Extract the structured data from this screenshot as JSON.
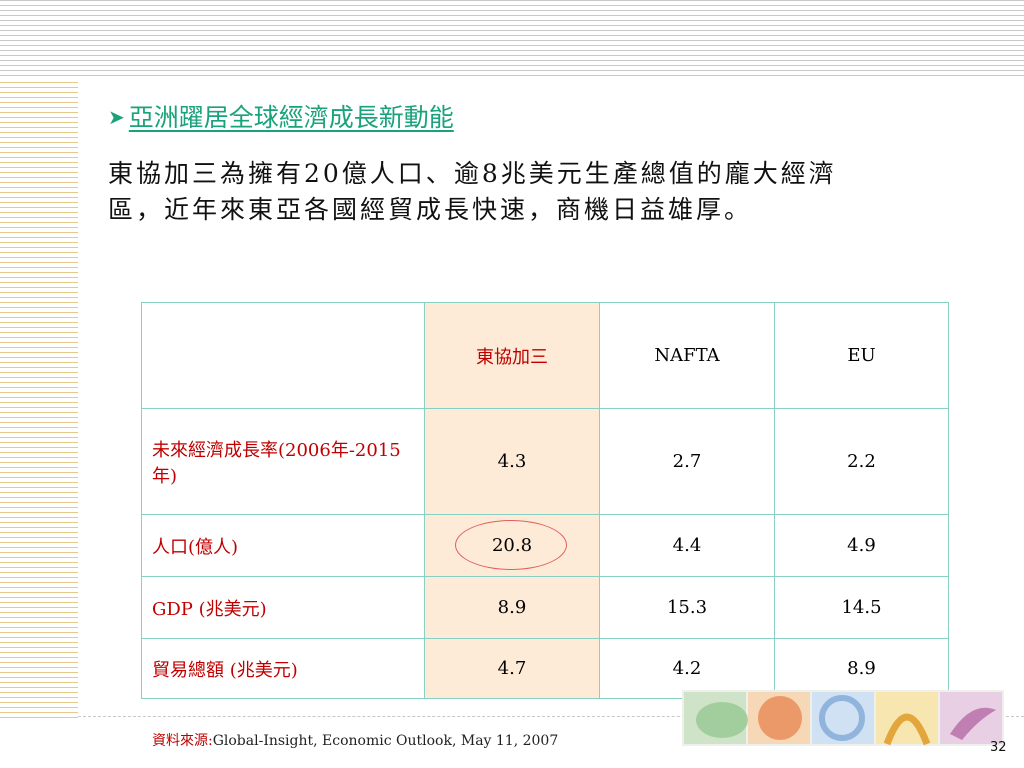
{
  "heading": "亞洲躍居全球經濟成長新動能",
  "paragraph": "東協加三為擁有20億人口、逾8兆美元生產總值的龐大經濟區，近年來東亞各國經貿成長快速，商機日益雄厚。",
  "table": {
    "headers": [
      "",
      "東協加三",
      "NAFTA",
      "EU"
    ],
    "rows": [
      {
        "label": "未來經濟成長率(2006年-2015年)",
        "values": [
          "4.3",
          "2.7",
          "2.2"
        ]
      },
      {
        "label": "人口(億人)",
        "values": [
          "20.8",
          "4.4",
          "4.9"
        ]
      },
      {
        "label": "GDP (兆美元)",
        "values": [
          "8.9",
          "15.3",
          "14.5"
        ]
      },
      {
        "label": "貿易總額 (兆美元)",
        "values": [
          "4.7",
          "4.2",
          "8.9"
        ]
      }
    ]
  },
  "source": {
    "prefix": "資料來源:",
    "text": "Global-Insight, Economic Outlook, May 11, 2007"
  },
  "page_number": "32",
  "colors": {
    "heading": "#1aa37a",
    "highlight_column": "#fdebd8",
    "label_red": "#c00000",
    "table_border": "#88d0c2"
  }
}
